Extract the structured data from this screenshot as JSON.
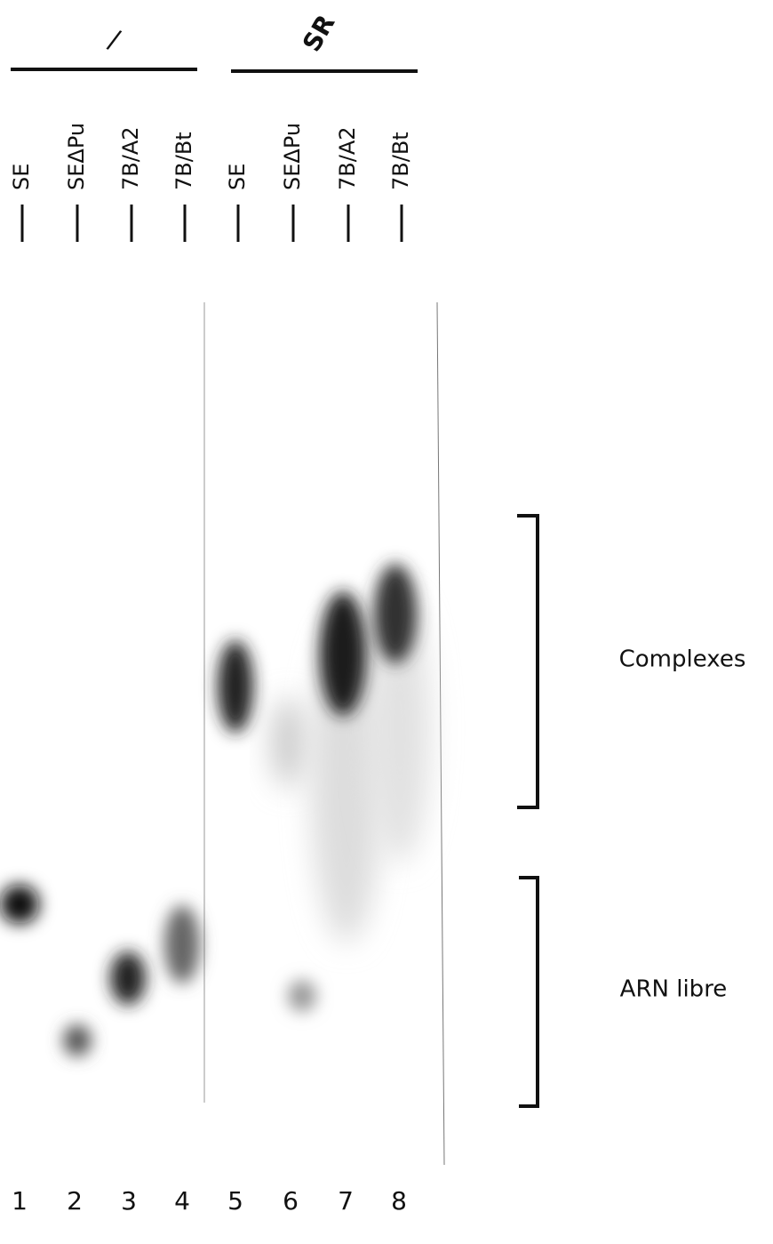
{
  "groups": [
    {
      "label": "/"
    },
    {
      "label": "SR"
    }
  ],
  "lanes": [
    {
      "name": "SE",
      "number": 1
    },
    {
      "name": "SEΔPu",
      "number": 2
    },
    {
      "name": "7B/A2",
      "number": 3
    },
    {
      "name": "7B/Bt",
      "number": 4
    },
    {
      "name": "SE",
      "number": 5
    },
    {
      "name": "SEΔPu",
      "number": 6
    },
    {
      "name": "7B/A2",
      "number": 7
    },
    {
      "name": "7B/Bt",
      "number": 8
    }
  ],
  "brackets": [
    {
      "label": "Complexes"
    },
    {
      "label": "ARN libre"
    }
  ]
}
